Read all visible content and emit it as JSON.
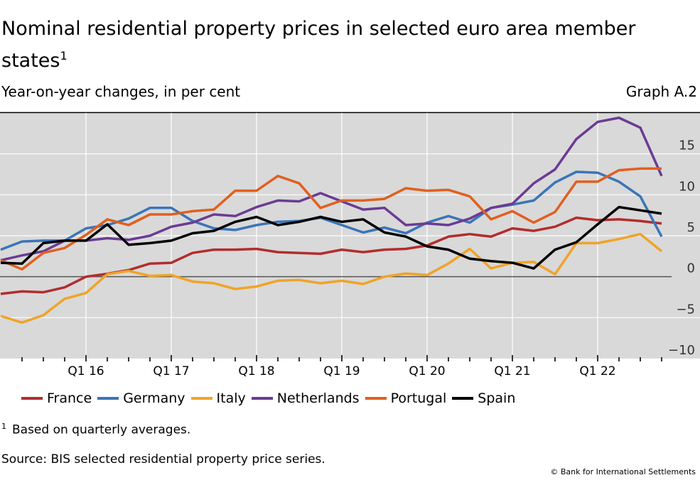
{
  "title": "Nominal residential property prices in selected euro area member states",
  "title_sup": "1",
  "subtitle": "Year-on-year changes, in per cent",
  "graph_id": "Graph A.2",
  "footnote_mark": "1",
  "footnote": "Based on quarterly averages.",
  "source": "Source: BIS selected residential property price series.",
  "copyright": "© Bank for International Settlements",
  "chart_data": {
    "type": "line",
    "x_start": "Q1 2015",
    "x_end": "Q4 2022",
    "xtick_labels": [
      "Q1 16",
      "Q1 17",
      "Q1 18",
      "Q1 19",
      "Q1 20",
      "Q1 21",
      "Q1 22"
    ],
    "ylim": [
      -10,
      20
    ],
    "yticks": [
      -10,
      -5,
      0,
      5,
      10,
      15
    ],
    "ytick_labels": [
      "−10",
      "−5",
      "0",
      "5",
      "10",
      "15"
    ],
    "y_axis_side": "right",
    "grid": true,
    "legend_placement": "bottom",
    "series": [
      {
        "name": "France",
        "color": "#b22d2e",
        "values": [
          -2.1,
          -1.8,
          -1.9,
          -1.3,
          0,
          0.35,
          0.8,
          1.6,
          1.7,
          2.9,
          3.3,
          3.3,
          3.4,
          3.0,
          2.9,
          2.8,
          3.3,
          3.0,
          3.3,
          3.4,
          3.8,
          4.9,
          5.2,
          4.9,
          5.9,
          5.6,
          6.1,
          7.2,
          6.9,
          7.0,
          6.8,
          6.5
        ]
      },
      {
        "name": "Germany",
        "color": "#3a75b8",
        "values": [
          3.3,
          4.3,
          4.4,
          4.4,
          5.9,
          6.3,
          7.1,
          8.4,
          8.4,
          6.8,
          5.9,
          5.7,
          6.3,
          6.7,
          6.8,
          7.2,
          6.3,
          5.4,
          6.0,
          5.3,
          6.6,
          7.4,
          6.6,
          8.4,
          8.8,
          9.3,
          11.5,
          12.8,
          12.7,
          11.6,
          9.8,
          4.9
        ]
      },
      {
        "name": "Italy",
        "color": "#efa428",
        "values": [
          -4.8,
          -5.6,
          -4.7,
          -2.7,
          -2.0,
          0.3,
          0.7,
          0.1,
          0.2,
          -0.6,
          -0.8,
          -1.5,
          -1.2,
          -0.5,
          -0.4,
          -0.8,
          -0.5,
          -0.9,
          0,
          0.4,
          0.2,
          1.6,
          3.4,
          1.0,
          1.7,
          1.8,
          0.3,
          4.1,
          4.1,
          4.6,
          5.2,
          3.1
        ]
      },
      {
        "name": "Netherlands",
        "color": "#6b3b93",
        "values": [
          2.0,
          2.6,
          3.1,
          4.4,
          4.4,
          4.7,
          4.5,
          5.0,
          6.1,
          6.6,
          7.6,
          7.4,
          8.5,
          9.3,
          9.2,
          10.2,
          9.2,
          8.2,
          8.4,
          6.3,
          6.5,
          6.3,
          7.1,
          8.4,
          8.9,
          11.4,
          13.1,
          16.8,
          18.9,
          19.4,
          18.2,
          12.3
        ]
      },
      {
        "name": "Portugal",
        "color": "#e0601f",
        "values": [
          2.0,
          0.9,
          2.9,
          3.5,
          5.1,
          7.0,
          6.3,
          7.6,
          7.6,
          8.0,
          8.2,
          10.5,
          10.5,
          12.3,
          11.4,
          8.4,
          9.3,
          9.3,
          9.5,
          10.8,
          10.5,
          10.6,
          9.8,
          7.0,
          8.0,
          6.6,
          7.9,
          11.6,
          11.6,
          13.0,
          13.2,
          13.2
        ]
      },
      {
        "name": "Spain",
        "color": "#000000",
        "values": [
          1.7,
          1.6,
          4.1,
          4.4,
          4.4,
          6.4,
          3.9,
          4.1,
          4.4,
          5.3,
          5.6,
          6.7,
          7.3,
          6.3,
          6.7,
          7.3,
          6.7,
          7.0,
          5.4,
          4.9,
          3.7,
          3.3,
          2.2,
          1.9,
          1.7,
          1.0,
          3.3,
          4.2,
          6.4,
          8.5,
          8.1,
          7.7
        ]
      }
    ]
  }
}
